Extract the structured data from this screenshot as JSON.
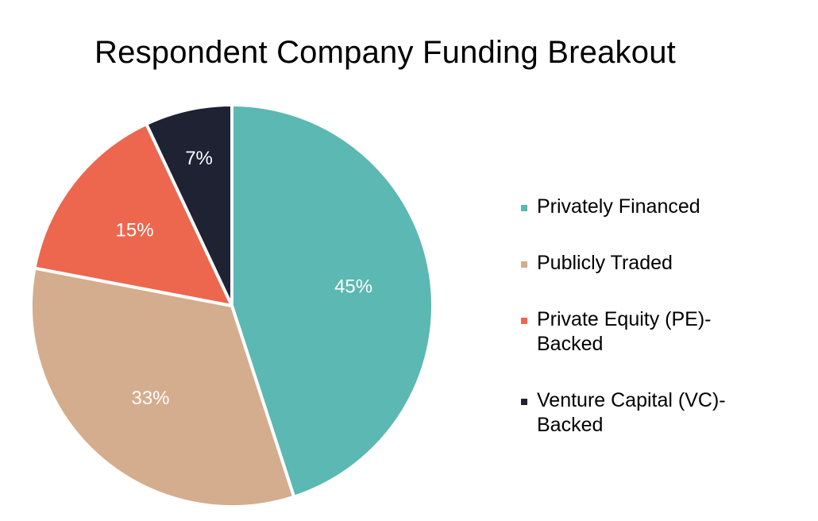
{
  "chart_data": {
    "type": "pie",
    "title": "Respondent Company Funding Breakout",
    "slices": [
      {
        "label": "Privately Financed",
        "value": 45,
        "display": "45%",
        "color": "#5bb8b2"
      },
      {
        "label": "Publicly Traded",
        "value": 33,
        "display": "33%",
        "color": "#d4ad8e"
      },
      {
        "label": "Private Equity (PE)-Backed",
        "value": 15,
        "display": "15%",
        "color": "#ec674e"
      },
      {
        "label": "Venture Capital (VC)-Backed",
        "value": 7,
        "display": "7%",
        "color": "#1e2233"
      }
    ],
    "legend_position": "right"
  }
}
